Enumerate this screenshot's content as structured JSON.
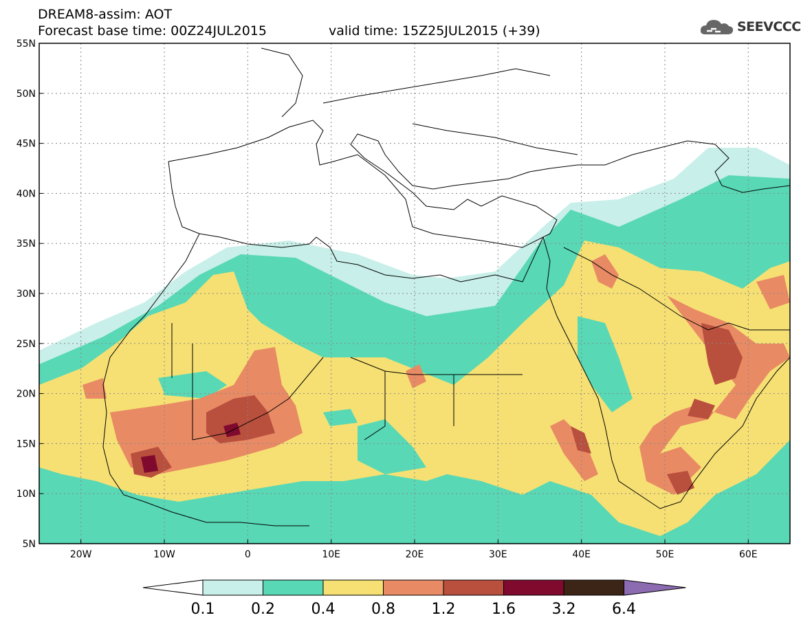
{
  "header": {
    "line1": "DREAM8-assim: AOT",
    "line2": "Forecast base time: 00Z24JUL2015",
    "line3": "valid time: 15Z25JUL2015 (+39)",
    "logo_text": "SEEVCCC",
    "logo_icon": "cloud-icon"
  },
  "map": {
    "lon_labels": [
      "20W",
      "10W",
      "0",
      "10E",
      "20E",
      "30E",
      "40E",
      "50E",
      "60E"
    ],
    "lat_labels": [
      "55N",
      "50N",
      "45N",
      "40N",
      "35N",
      "30N",
      "25N",
      "20N",
      "15N",
      "10N",
      "5N"
    ],
    "lon_range": [
      -25,
      65
    ],
    "lat_range": [
      5,
      55
    ]
  },
  "legend": {
    "colors": [
      "#c8efe9",
      "#58d8b5",
      "#f6e073",
      "#e88a64",
      "#b94f3d",
      "#800a2d",
      "#3c2416",
      "#8c6bb1"
    ],
    "labels": [
      "0.1",
      "0.2",
      "0.4",
      "0.8",
      "1.2",
      "1.6",
      "3.2",
      "6.4"
    ]
  }
}
